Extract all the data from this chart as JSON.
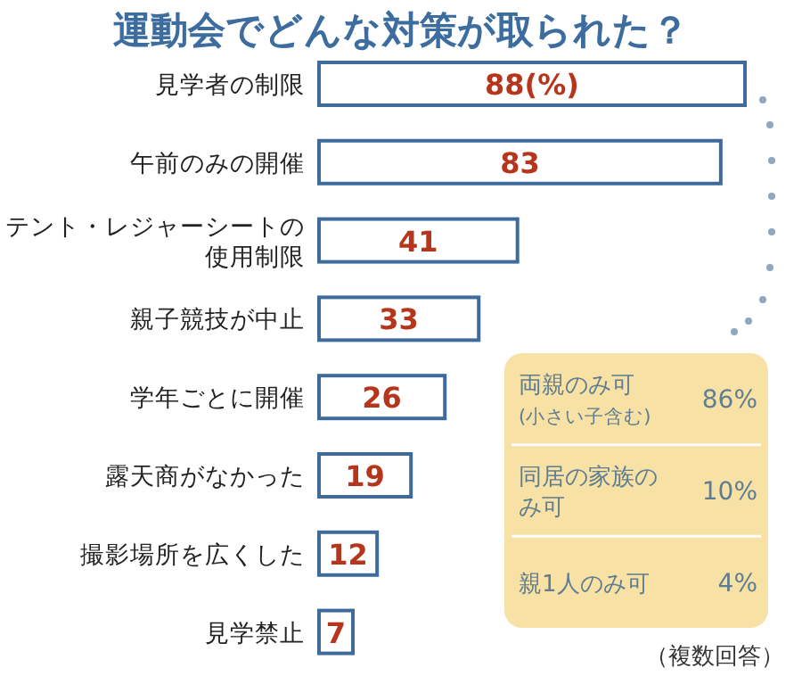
{
  "chart_data": [
    {
      "type": "bar",
      "orientation": "horizontal",
      "title": "運動会でどんな対策が取られた？",
      "categories": [
        "見学者の制限",
        "午前のみの開催",
        "テント・レジャーシートの使用制限",
        "親子競技が中止",
        "学年ごとに開催",
        "露天商がなかった",
        "撮影場所を広くした",
        "見学禁止"
      ],
      "values": [
        88,
        83,
        41,
        33,
        26,
        19,
        12,
        7
      ],
      "value_labels": [
        "88(%)",
        "83",
        "41",
        "33",
        "26",
        "19",
        "12",
        "7"
      ],
      "color": "#3f6b9c",
      "annotations": [
        "（複数回答）"
      ]
    },
    {
      "type": "other",
      "categories": [
        "両親のみ可(小さい子含む)",
        "同居の家族のみ可",
        "親1人のみ可"
      ],
      "value_labels": [
        "86%",
        "10%",
        "4%"
      ]
    }
  ]
}
